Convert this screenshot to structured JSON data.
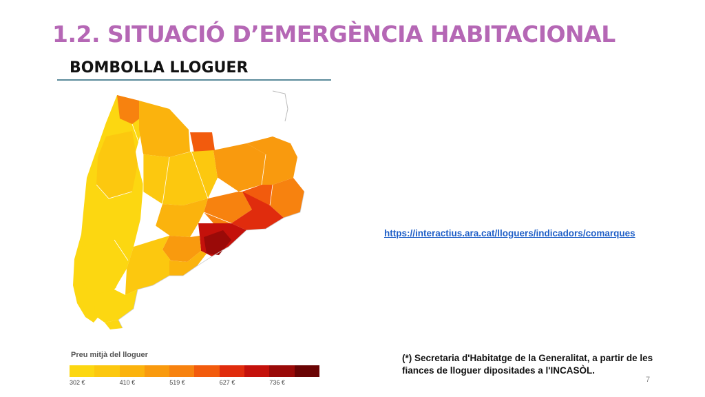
{
  "slide": {
    "title": "1.2. SITUACIÓ D’EMERGÈNCIA HABITACIONAL",
    "subtitle": "BOMBOLLA LLOGUER",
    "page_number": "7"
  },
  "legend": {
    "title": "Preu mitjà del lloguer",
    "colors": [
      "#fcd711",
      "#fcc80f",
      "#fbb30d",
      "#f99a0e",
      "#f7820f",
      "#f25b0d",
      "#e02c0d",
      "#c4110b",
      "#9a0a08",
      "#6a0404"
    ],
    "ticks": [
      "302 €",
      "410 €",
      "519 €",
      "627 €",
      "736 €"
    ]
  },
  "link": {
    "text": "https://interactius.ara.cat/lloguers/indicadors/comarques"
  },
  "source": {
    "text": "(*) Secretaria d'Habitatge de la Generalitat, a partir de les fiances de lloguer dipositades a l'INCASÒL."
  },
  "map": {
    "comarques_colors": [
      "#fcd711",
      "#fcc80f",
      "#fbb30d",
      "#f99a0e",
      "#f7820f",
      "#f25b0d",
      "#e02c0d",
      "#c4110b",
      "#9a0a08"
    ]
  }
}
